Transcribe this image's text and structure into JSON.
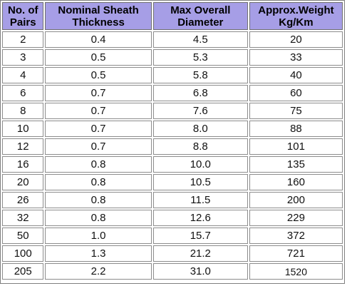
{
  "table": {
    "headers": [
      [
        "No. of",
        "Pairs"
      ],
      [
        "Nominal Sheath",
        "Thickness"
      ],
      [
        "Max Overall",
        "Diameter"
      ],
      [
        "Approx.Weight",
        "Kg/Km"
      ]
    ],
    "rows": [
      [
        "2",
        "0.4",
        "4.5",
        "20"
      ],
      [
        "3",
        "0.5",
        "5.3",
        "33"
      ],
      [
        "4",
        "0.5",
        "5.8",
        "40"
      ],
      [
        "6",
        "0.7",
        "6.8",
        "60"
      ],
      [
        "8",
        "0.7",
        "7.6",
        "75"
      ],
      [
        "10",
        "0.7",
        "8.0",
        "88"
      ],
      [
        "12",
        "0.7",
        "8.8",
        "101"
      ],
      [
        "16",
        "0.8",
        "10.0",
        "135"
      ],
      [
        "20",
        "0.8",
        "10.5",
        "160"
      ],
      [
        "26",
        "0.8",
        "11.5",
        "200"
      ],
      [
        "32",
        "0.8",
        "12.6",
        "229"
      ],
      [
        "50",
        "1.0",
        "15.7",
        "372"
      ],
      [
        "100",
        "1.3",
        "21.2",
        "721"
      ],
      [
        "205",
        "2.2",
        "31.0",
        "1520"
      ]
    ]
  },
  "colors": {
    "header_background": "#a69ee6",
    "cell_background": "#ffffff",
    "border": "#8c8c8c"
  }
}
